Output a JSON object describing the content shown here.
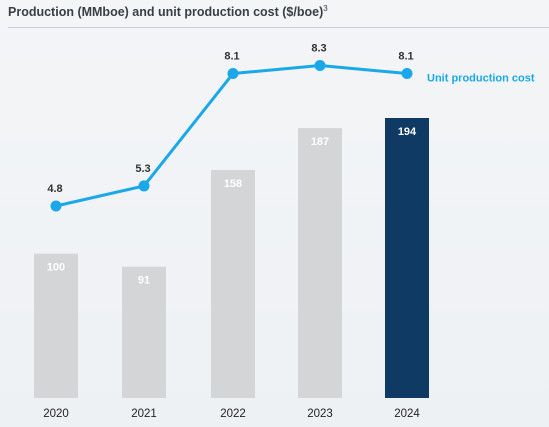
{
  "title": "Production (MMboe) and unit production cost ($/boe)",
  "title_note": "3",
  "colors": {
    "bar": "#d4d5d7",
    "bar_highlight": "#0e3a63",
    "line": "#1ba8e8",
    "background": "#f1f3f6"
  },
  "chart_data": {
    "type": "bar",
    "categories": [
      "2020",
      "2021",
      "2022",
      "2023",
      "2024"
    ],
    "series": [
      {
        "name": "Production (MMboe)",
        "type": "bar",
        "values": [
          100,
          91,
          158,
          187,
          194
        ],
        "highlight_index": 4
      },
      {
        "name": "Unit production cost",
        "type": "line",
        "values": [
          4.8,
          5.3,
          8.1,
          8.3,
          8.1
        ]
      }
    ],
    "series_label": "Unit production cost",
    "bar_ylim": [
      0,
      200
    ],
    "line_ylim": [
      0,
      10
    ],
    "grid": false,
    "legend": "right of line end"
  }
}
